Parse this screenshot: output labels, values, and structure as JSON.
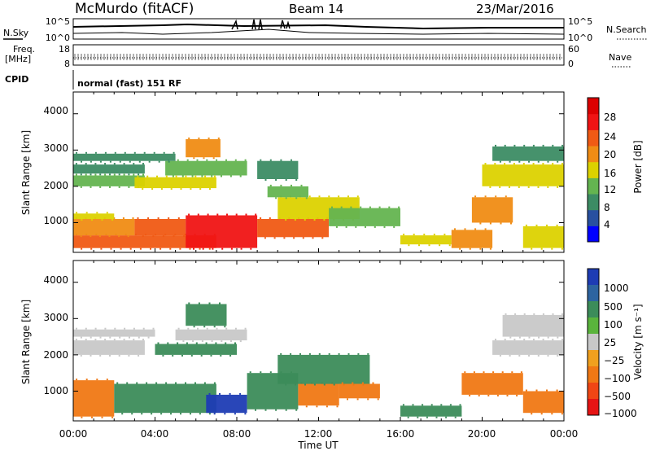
{
  "header": {
    "station": "McMurdo (fitACF)",
    "beam": "Beam 14",
    "date": "23/Mar/2016"
  },
  "noise_panel": {
    "left_label": "N.Sky",
    "right_label": "N.Search",
    "left_ticks": [
      "10^5",
      "10^0"
    ],
    "right_ticks": [
      "10^5",
      "10^0"
    ]
  },
  "freq_panel": {
    "left_label_line1": "Freq.",
    "left_label_line2": "[MHz]",
    "left_ticks": [
      "18",
      "8"
    ],
    "right_label": "Nave",
    "right_ticks": [
      "60",
      "0"
    ]
  },
  "cpid": {
    "label": "CPID",
    "text": "normal (fast) 151 RF"
  },
  "x_axis": {
    "label": "Time UT",
    "ticks": [
      "00:00",
      "04:00",
      "08:00",
      "12:00",
      "16:00",
      "20:00",
      "00:00"
    ]
  },
  "power_panel": {
    "ylabel": "Slant Range [km]",
    "yticks": [
      "4000",
      "3000",
      "2000",
      "1000"
    ],
    "colorbar_label": "Power [dB]",
    "colorbar_ticks": [
      "28",
      "24",
      "20",
      "16",
      "12",
      "8",
      "4"
    ]
  },
  "velocity_panel": {
    "ylabel": "Slant Range [km]",
    "yticks": [
      "4000",
      "3000",
      "2000",
      "1000"
    ],
    "colorbar_label": "Velocity [m s⁻¹]",
    "colorbar_ticks": [
      "1000",
      "500",
      "100",
      "25",
      "−25",
      "−100",
      "−500",
      "−1000"
    ]
  },
  "colors": {
    "power_scale": [
      "#0000ff",
      "#2850a0",
      "#3c8c64",
      "#64b450",
      "#dcd200",
      "#f08c14",
      "#f05a14",
      "#f01414",
      "#dc0000"
    ],
    "velocity_scale": [
      "#1e3cb4",
      "#2d64a0",
      "#3c8c5a",
      "#5ab43c",
      "#c8c8c8",
      "#f0a01e",
      "#f07814",
      "#f04614",
      "#e61414"
    ]
  },
  "chart_data": [
    {
      "type": "heatmap",
      "title": "Power",
      "xlabel": "Time UT",
      "ylabel": "Slant Range [km]",
      "x_range_hours": [
        0,
        24
      ],
      "ylim": [
        180,
        4600
      ],
      "colorbar": {
        "label": "Power [dB]",
        "range": [
          0,
          32
        ],
        "ticks": [
          4,
          8,
          12,
          16,
          20,
          24,
          28
        ]
      },
      "regions": [
        {
          "t0": 0.0,
          "t1": 7.0,
          "r0": 300,
          "r1": 650,
          "value": 27
        },
        {
          "t0": 0.0,
          "t1": 3.0,
          "r0": 650,
          "r1": 1100,
          "value": 22
        },
        {
          "t0": 3.0,
          "t1": 5.5,
          "r0": 650,
          "r1": 1100,
          "value": 26
        },
        {
          "t0": 5.5,
          "t1": 9.0,
          "r0": 300,
          "r1": 1200,
          "value": 28
        },
        {
          "t0": 0.0,
          "t1": 2.0,
          "r0": 1100,
          "r1": 1250,
          "value": 16
        },
        {
          "t0": 9.0,
          "t1": 12.5,
          "r0": 600,
          "r1": 1100,
          "value": 24
        },
        {
          "t0": 10.0,
          "t1": 14.0,
          "r0": 1100,
          "r1": 1700,
          "value": 18
        },
        {
          "t0": 12.5,
          "t1": 16.0,
          "r0": 900,
          "r1": 1400,
          "value": 14
        },
        {
          "t0": 9.5,
          "t1": 11.5,
          "r0": 1700,
          "r1": 2000,
          "value": 13
        },
        {
          "t0": 0.0,
          "t1": 3.5,
          "r0": 2000,
          "r1": 2300,
          "value": 12
        },
        {
          "t0": 0.0,
          "t1": 3.5,
          "r0": 2350,
          "r1": 2600,
          "value": 10
        },
        {
          "t0": 3.0,
          "t1": 7.0,
          "r0": 1950,
          "r1": 2250,
          "value": 16
        },
        {
          "t0": 4.5,
          "t1": 8.5,
          "r0": 2300,
          "r1": 2700,
          "value": 12
        },
        {
          "t0": 9.0,
          "t1": 11.0,
          "r0": 2200,
          "r1": 2700,
          "value": 10
        },
        {
          "t0": 5.5,
          "t1": 7.2,
          "r0": 2800,
          "r1": 3300,
          "value": 20
        },
        {
          "t0": 0.0,
          "t1": 5.0,
          "r0": 2700,
          "r1": 2900,
          "value": 8
        },
        {
          "t0": 16.0,
          "t1": 18.5,
          "r0": 400,
          "r1": 650,
          "value": 16
        },
        {
          "t0": 18.5,
          "t1": 20.5,
          "r0": 300,
          "r1": 800,
          "value": 20
        },
        {
          "t0": 19.5,
          "t1": 21.5,
          "r0": 1000,
          "r1": 1700,
          "value": 22
        },
        {
          "t0": 20.0,
          "t1": 24.0,
          "r0": 2000,
          "r1": 2600,
          "value": 18
        },
        {
          "t0": 20.5,
          "t1": 24.0,
          "r0": 2700,
          "r1": 3100,
          "value": 10
        },
        {
          "t0": 22.0,
          "t1": 24.0,
          "r0": 300,
          "r1": 900,
          "value": 16
        }
      ]
    },
    {
      "type": "heatmap",
      "title": "Velocity",
      "xlabel": "Time UT",
      "ylabel": "Slant Range [km]",
      "x_range_hours": [
        0,
        24
      ],
      "ylim": [
        180,
        4600
      ],
      "colorbar": {
        "label": "Velocity [m s⁻¹]",
        "levels": [
          1000,
          500,
          100,
          25,
          -25,
          -100,
          -500,
          -1000
        ]
      },
      "regions": [
        {
          "t0": 0.0,
          "t1": 2.0,
          "r0": 300,
          "r1": 1300,
          "value": -300
        },
        {
          "t0": 2.0,
          "t1": 7.0,
          "r0": 400,
          "r1": 1200,
          "value": 80
        },
        {
          "t0": 6.5,
          "t1": 8.5,
          "r0": 400,
          "r1": 900,
          "value": 600
        },
        {
          "t0": 8.5,
          "t1": 11.0,
          "r0": 500,
          "r1": 1500,
          "value": 90
        },
        {
          "t0": 11.0,
          "t1": 13.0,
          "r0": 600,
          "r1": 1200,
          "value": -300
        },
        {
          "t0": 10.0,
          "t1": 14.5,
          "r0": 1200,
          "r1": 2000,
          "value": 80
        },
        {
          "t0": 13.0,
          "t1": 15.0,
          "r0": 800,
          "r1": 1200,
          "value": -200
        },
        {
          "t0": 0.0,
          "t1": 3.5,
          "r0": 2000,
          "r1": 2400,
          "value": 10
        },
        {
          "t0": 0.0,
          "t1": 4.0,
          "r0": 2500,
          "r1": 2700,
          "value": 0
        },
        {
          "t0": 4.0,
          "t1": 8.0,
          "r0": 2000,
          "r1": 2300,
          "value": 90
        },
        {
          "t0": 5.0,
          "t1": 8.5,
          "r0": 2400,
          "r1": 2700,
          "value": 0
        },
        {
          "t0": 5.5,
          "t1": 7.5,
          "r0": 2800,
          "r1": 3400,
          "value": 80
        },
        {
          "t0": 16.0,
          "t1": 19.0,
          "r0": 300,
          "r1": 600,
          "value": 90
        },
        {
          "t0": 19.0,
          "t1": 22.0,
          "r0": 900,
          "r1": 1500,
          "value": -300
        },
        {
          "t0": 20.5,
          "t1": 24.0,
          "r0": 2000,
          "r1": 2400,
          "value": 0
        },
        {
          "t0": 21.0,
          "t1": 24.0,
          "r0": 2500,
          "r1": 3100,
          "value": 0
        },
        {
          "t0": 22.0,
          "t1": 24.0,
          "r0": 400,
          "r1": 1000,
          "value": -100
        }
      ]
    }
  ]
}
